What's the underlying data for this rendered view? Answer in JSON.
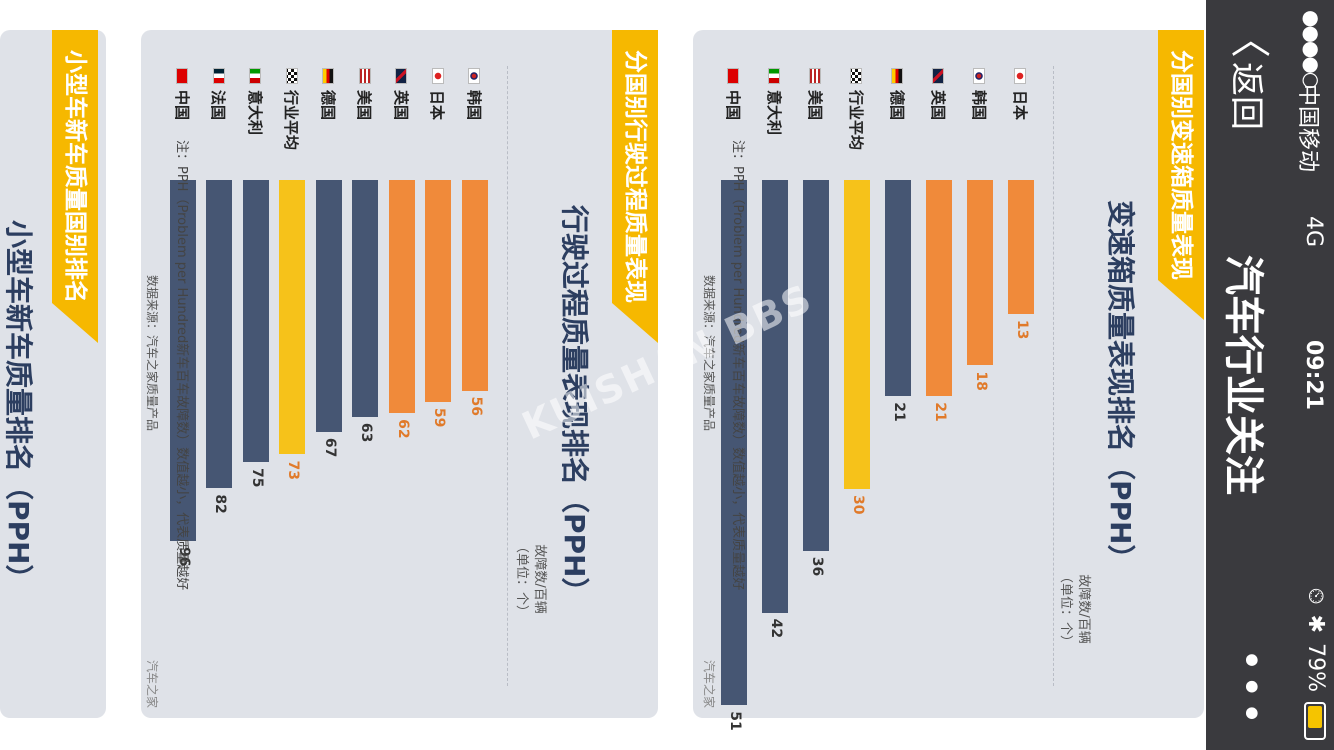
{
  "status": {
    "signal": "●●●●○",
    "carrier": "中国移动",
    "network": "4G",
    "time": "09:21",
    "battery": "79%",
    "battery_level": 0.79
  },
  "nav": {
    "back_label": "返回",
    "title": "汽车行业关注"
  },
  "colors": {
    "bar_dark": "#465673",
    "bar_orange": "#f08a3a",
    "bar_avg": "#f6c21a",
    "banner": "#f6b800"
  },
  "cards": [
    {
      "banner": "分国别变速箱质量表现",
      "title": "变速箱质量表现排名（PPH）",
      "unit_line1": "故障数/百辆",
      "unit_line2": "（单位：个）",
      "note": "注：PPH（Problem per Hundred新车百车故障数）数值越小，代表质量越好",
      "source": "数据来源：汽车之家质量产品",
      "brand": "汽车之家",
      "chart_data": {
        "type": "bar",
        "categories": [
          "日本",
          "韩国",
          "英国",
          "德国",
          "行业平均",
          "美国",
          "意大利",
          "中国"
        ],
        "values": [
          13,
          18,
          21,
          21,
          30,
          36,
          42,
          51
        ],
        "flags": [
          "japan",
          "korea",
          "uk",
          "germany",
          "checkered",
          "usa",
          "italy",
          "china"
        ],
        "bar_colors": [
          "orange",
          "orange",
          "orange",
          "dark",
          "avg",
          "dark",
          "dark",
          "dark"
        ],
        "title": "变速箱质量表现排名（PPH）"
      }
    },
    {
      "banner": "分国别行驶过程质量表现",
      "title": "行驶过程质量表现排名（PPH）",
      "unit_line1": "故障数/百辆",
      "unit_line2": "（单位：个）",
      "note": "注：PPH（Problem per Hundred新车百车故障数）数值越小，代表质量越好",
      "source": "数据来源：汽车之家质量产品",
      "brand": "汽车之家",
      "chart_data": {
        "type": "bar",
        "categories": [
          "韩国",
          "日本",
          "英国",
          "美国",
          "德国",
          "行业平均",
          "意大利",
          "法国",
          "中国"
        ],
        "values": [
          56,
          59,
          62,
          63,
          67,
          73,
          75,
          82,
          96
        ],
        "flags": [
          "korea",
          "japan",
          "uk",
          "usa",
          "germany",
          "checkered",
          "italy",
          "france",
          "china"
        ],
        "bar_colors": [
          "orange",
          "orange",
          "orange",
          "dark",
          "dark",
          "avg",
          "dark",
          "dark",
          "dark"
        ],
        "title": "行驶过程质量表现排名（PPH）"
      }
    },
    {
      "banner": "小型车新车质量国别排名",
      "title": "小型车新车质量排名（PPH）"
    }
  ],
  "watermark": "KUISHAN BBS"
}
